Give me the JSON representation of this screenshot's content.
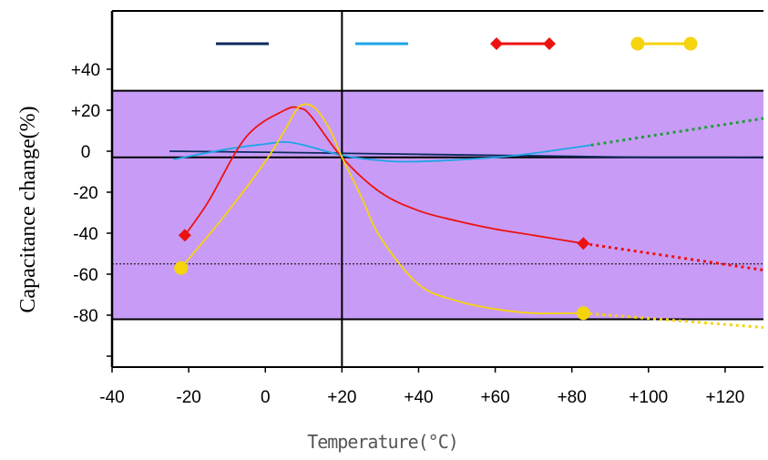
{
  "chart_data": {
    "type": "line",
    "title": "",
    "xlabel": "Temperature(°C)",
    "ylabel": "Capacitance change(%)",
    "xlim": [
      -40,
      130
    ],
    "ylim": [
      -100,
      55
    ],
    "x_tick_labels": [
      "-40",
      "-20",
      "0",
      "+20",
      "+40",
      "+60",
      "+80",
      "+100",
      "+120"
    ],
    "x_tick_values": [
      -40,
      -20,
      0,
      20,
      40,
      60,
      80,
      100,
      120
    ],
    "y_tick_labels": [
      "+40",
      "+20",
      "0",
      "-20",
      "-40",
      "-60",
      "-80"
    ],
    "y_tick_values": [
      40,
      20,
      0,
      -20,
      -40,
      -60,
      -80
    ],
    "shaded_band": {
      "from": -82,
      "to": 29.5,
      "color": "#c89cf6"
    },
    "reference_lines": {
      "horizontal_solid": [
        -3,
        29.5,
        -82
      ],
      "horizontal_dotted": -55,
      "vertical_solid": 20
    },
    "series": [
      {
        "color": "#0d2a5e",
        "style": "solid",
        "marker": "none",
        "x": [
          -25,
          0,
          20,
          40,
          60,
          80,
          100,
          120,
          130
        ],
        "y": [
          0,
          -0.5,
          -1,
          -1.5,
          -2,
          -2.5,
          -3,
          -3,
          -3.2
        ]
      },
      {
        "color": "#1ea5e6",
        "style": "solid",
        "marker": "none",
        "x": [
          -24,
          -10,
          0,
          5,
          10,
          20,
          30,
          40,
          60,
          70,
          85
        ],
        "y": [
          -4,
          1,
          3.5,
          4.5,
          3,
          -2,
          -4.5,
          -5,
          -3,
          -1,
          3
        ],
        "extension": {
          "color": "#1e9e3a",
          "style": "dotted",
          "x": [
            85,
            130
          ],
          "y": [
            3,
            16
          ]
        }
      },
      {
        "color": "#ee1111",
        "style": "solid",
        "marker": "diamond",
        "x": [
          -21,
          -15,
          -5,
          5,
          9,
          12,
          20,
          30,
          40,
          50,
          60,
          70,
          83
        ],
        "y": [
          -41,
          -25,
          7,
          20,
          21,
          17,
          -3,
          -20,
          -29,
          -34,
          -38,
          -41,
          -45
        ],
        "marker_points": [
          [
            -21,
            -41
          ],
          [
            83,
            -45
          ]
        ],
        "extension": {
          "color": "#ee1111",
          "style": "dotted",
          "x": [
            83,
            130
          ],
          "y": [
            -45,
            -58
          ]
        }
      },
      {
        "color": "#f6d40d",
        "style": "solid",
        "marker": "circle",
        "x": [
          -22,
          -10,
          0,
          5,
          9,
          13,
          17,
          20,
          25,
          30,
          40,
          50,
          60,
          70,
          83
        ],
        "y": [
          -57,
          -30,
          -5,
          10,
          22,
          21,
          10,
          -3,
          -22,
          -42,
          -65,
          -73,
          -77,
          -79,
          -79
        ],
        "marker_points": [
          [
            -22,
            -57
          ],
          [
            83,
            -79
          ]
        ],
        "extension": {
          "color": "#f6d40d",
          "style": "dotted",
          "x": [
            83,
            130
          ],
          "y": [
            -79,
            -86
          ]
        }
      }
    ]
  }
}
